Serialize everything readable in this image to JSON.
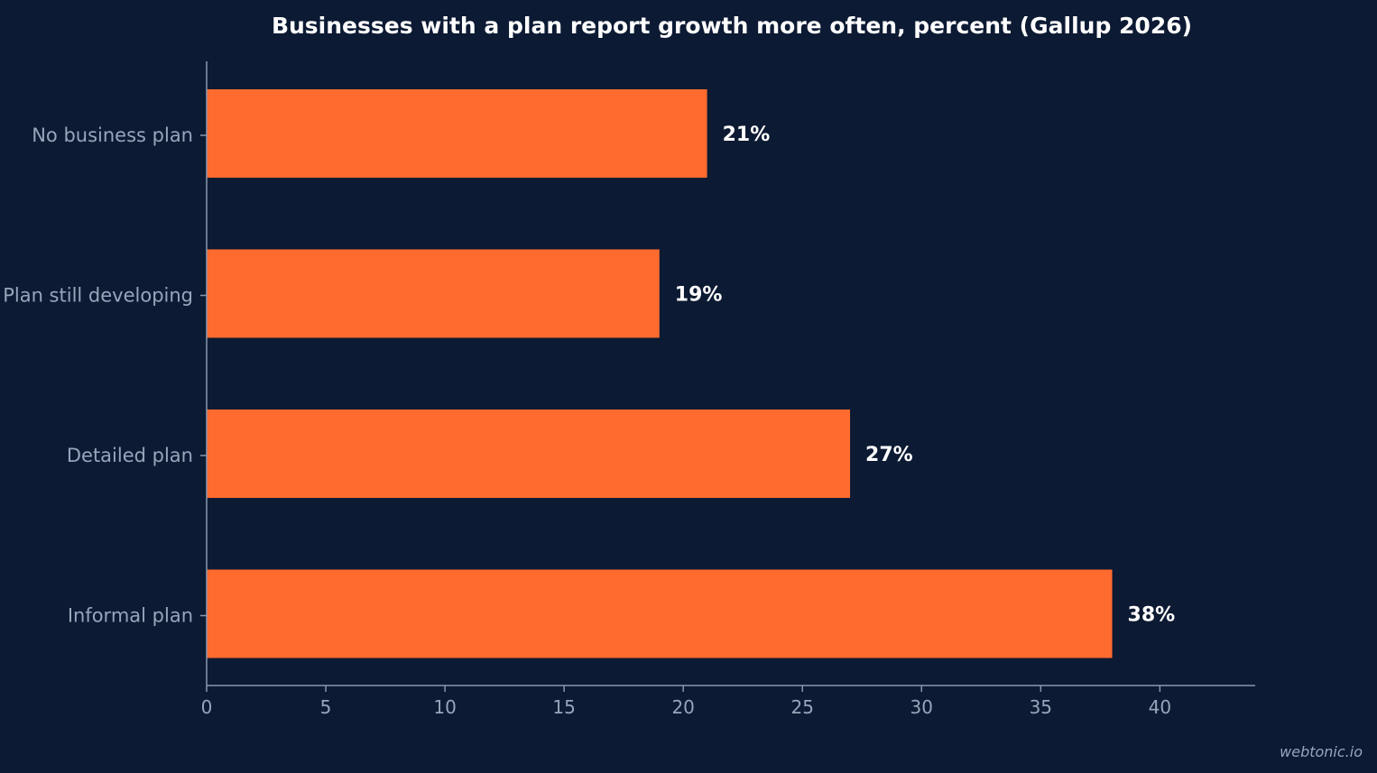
{
  "page": {
    "background": "#0c1a33",
    "watermark": "webtonic.io"
  },
  "chart_data": {
    "type": "bar",
    "orientation": "horizontal",
    "title": "Businesses with a plan report growth more often, percent (Gallup 2026)",
    "xlabel": "",
    "ylabel": "",
    "categories": [
      "No business plan",
      "Plan still developing",
      "Detailed plan",
      "Informal plan"
    ],
    "values": [
      21,
      19,
      27,
      38
    ],
    "data_labels": [
      "21%",
      "19%",
      "27%",
      "38%"
    ],
    "xlim": [
      0,
      44
    ],
    "xticks": [
      0,
      5,
      10,
      15,
      20,
      25,
      30,
      35,
      40
    ],
    "grid": false,
    "legend": "none",
    "colors": {
      "bar": "#ff6b2e",
      "axis": "#8a98ad",
      "tick_text": "#98a6ba",
      "label_text": "#ffffff"
    }
  }
}
